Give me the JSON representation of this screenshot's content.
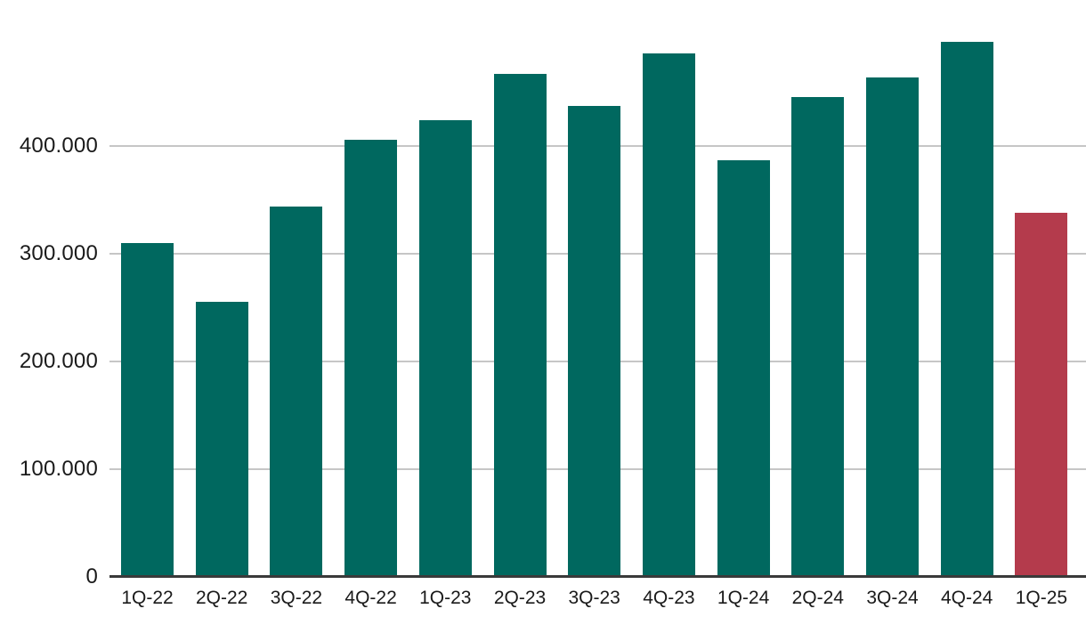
{
  "chart_data": {
    "type": "bar",
    "title": "",
    "xlabel": "",
    "ylabel": "",
    "categories": [
      "1Q-22",
      "2Q-22",
      "3Q-22",
      "4Q-22",
      "1Q-23",
      "2Q-23",
      "3Q-23",
      "4Q-23",
      "1Q-24",
      "2Q-24",
      "3Q-24",
      "4Q-24",
      "1Q-25"
    ],
    "values": [
      310000,
      255000,
      344000,
      406000,
      424000,
      467000,
      437000,
      486000,
      387000,
      445000,
      464000,
      497000,
      338000
    ],
    "highlight_index": 12,
    "ylim": [
      0,
      500000
    ],
    "yticks": [
      {
        "value": 0,
        "label": "0"
      },
      {
        "value": 100000,
        "label": "100.000"
      },
      {
        "value": 200000,
        "label": "200.000"
      },
      {
        "value": 300000,
        "label": "300.000"
      },
      {
        "value": 400000,
        "label": "400.000"
      }
    ],
    "grid": true,
    "legend": false,
    "colors": {
      "bar_default": "#00685F",
      "bar_highlight": "#B43B4C",
      "gridline": "#C6C6C6",
      "axis_line": "#3A3A3A",
      "tick_text": "#1A1A1A",
      "background": "#FFFFFF"
    }
  }
}
